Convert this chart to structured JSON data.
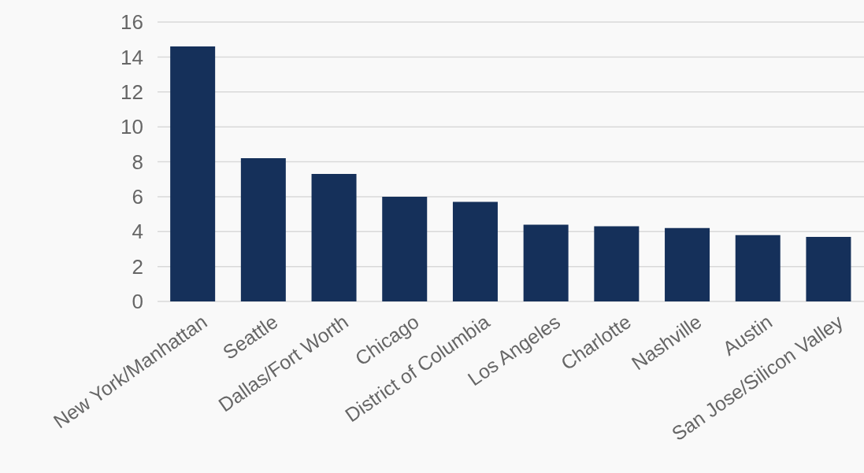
{
  "chart_data": {
    "type": "bar",
    "categories": [
      "New York/Manhattan",
      "Seattle",
      "Dallas/Fort Worth",
      "Chicago",
      "District of Columbia",
      "Los Angeles",
      "Charlotte",
      "Nashville",
      "Austin",
      "San Jose/Silicon Valley"
    ],
    "values": [
      14.6,
      8.2,
      7.3,
      6.0,
      5.7,
      4.4,
      4.3,
      4.2,
      3.8,
      3.7
    ],
    "color": "#15305a",
    "ylim": [
      0,
      16
    ],
    "yticks": [
      0,
      2,
      4,
      6,
      8,
      10,
      12,
      14,
      16
    ],
    "grid": "y"
  }
}
